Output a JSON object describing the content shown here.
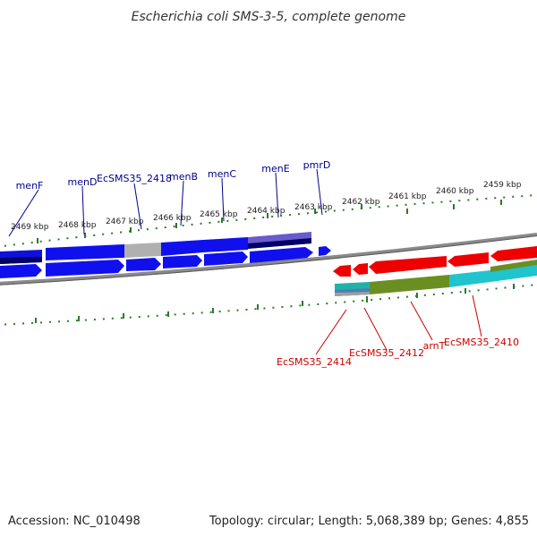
{
  "title": "Escherichia coli SMS-3-5, complete genome",
  "footer": {
    "accession": "Accession: NC_010498",
    "summary": "Topology: circular; Length: 5,068,389 bp; Genes: 4,855"
  },
  "colors": {
    "forward_gene": "#0000ee",
    "reverse_gene": "#ee0000",
    "tick": "#006400",
    "backbone": "#777777",
    "forward_label": "#00008b",
    "reverse_label": "#cc0000"
  },
  "tick_labels": [
    "2469 kbp",
    "2468 kbp",
    "2467 kbp",
    "2466 kbp",
    "2465 kbp",
    "2464 kbp",
    "2463 kbp",
    "2462 kbp",
    "2461 kbp",
    "2460 kbp",
    "2459 kbp"
  ],
  "forward_gene_labels": [
    "menF",
    "menD",
    "EcSMS35_2418",
    "menB",
    "menC",
    "menE",
    "pmrD"
  ],
  "reverse_gene_labels": [
    "EcSMS35_2414",
    "EcSMS35_2412",
    "arnT",
    "EcSMS35_2410"
  ]
}
